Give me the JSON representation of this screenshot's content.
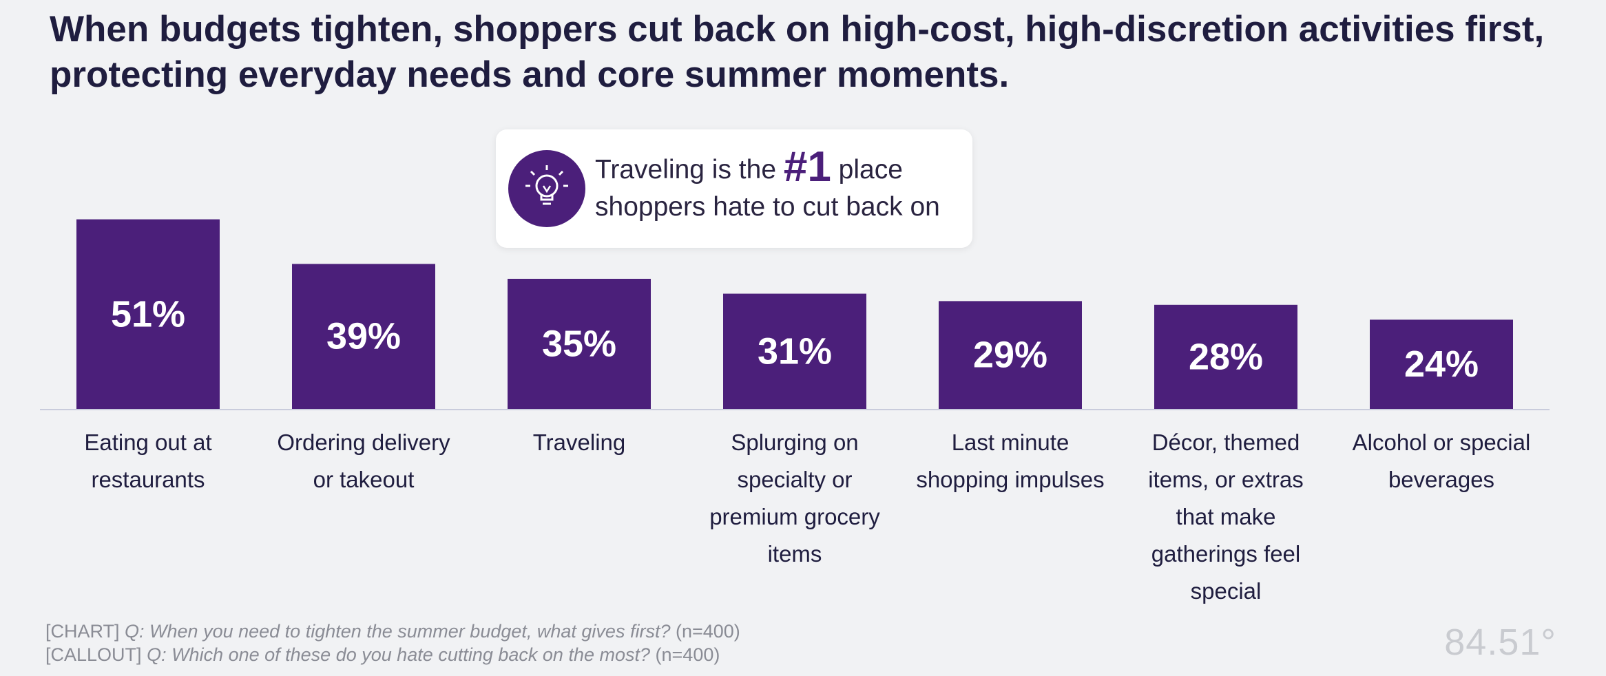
{
  "title": "When budgets tighten, shoppers cut back on high-cost, high-discretion activities first, protecting everyday needs and core summer moments.",
  "callout": {
    "text_before": "Traveling is the",
    "number": "#1",
    "text_after_line1": "place",
    "text_line2": "shoppers hate to cut back on",
    "icon": "lightbulb-icon"
  },
  "chart_data": {
    "type": "bar",
    "categories": [
      [
        "Eating out at",
        "restaurants"
      ],
      [
        "Ordering delivery",
        "or takeout"
      ],
      [
        "Traveling"
      ],
      [
        "Splurging on",
        "specialty or",
        "premium grocery",
        "items"
      ],
      [
        "Last minute",
        "shopping impulses"
      ],
      [
        "Décor, themed",
        "items, or extras",
        "that make",
        "gatherings feel",
        "special"
      ],
      [
        "Alcohol or special",
        "beverages"
      ]
    ],
    "values": [
      51,
      39,
      35,
      31,
      29,
      28,
      24
    ],
    "value_labels": [
      "51%",
      "39%",
      "35%",
      "31%",
      "29%",
      "28%",
      "24%"
    ],
    "ylim": [
      0,
      100
    ],
    "bar_color": "#4b1f7a"
  },
  "footnotes": {
    "chart_tag": "[CHART]",
    "chart_q": "Q: When you need to tighten the summer budget, what gives first?",
    "chart_n": "(n=400)",
    "callout_tag": "[CALLOUT]",
    "callout_q": "Q: Which one of these do you hate cutting back on the most?",
    "callout_n": "(n=400)"
  },
  "logo": "84.51°"
}
